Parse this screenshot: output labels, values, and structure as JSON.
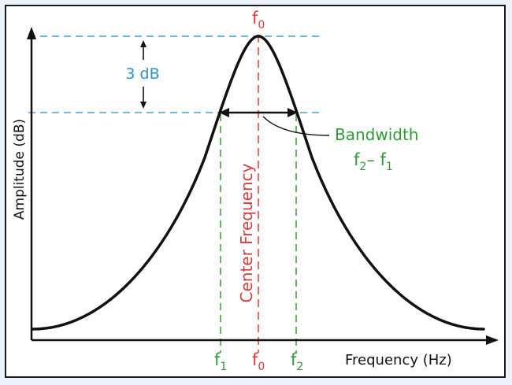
{
  "diagram": {
    "y_axis_label": "Amplitude (dB)",
    "x_axis_label": "Frequency (Hz)",
    "db_label": "3 dB",
    "center_label": "Center Frequency",
    "bandwidth_label": "Bandwidth",
    "bandwidth_formula": {
      "a": "f",
      "a_sub": "2",
      "op": "– ",
      "b": "f",
      "b_sub": "1"
    },
    "f0_top": {
      "main": "f",
      "sub": "0"
    },
    "x_ticks": [
      {
        "main": "f",
        "sub": "1"
      },
      {
        "main": "f",
        "sub": "0"
      },
      {
        "main": "f",
        "sub": "2"
      }
    ]
  },
  "colors": {
    "curve": "#111111",
    "guide_blue": "#4a9fd2",
    "center_red": "#d93b3b",
    "bandwidth_green": "#2f9a35",
    "db_text": "#2e8fc4",
    "axis": "#111111"
  }
}
